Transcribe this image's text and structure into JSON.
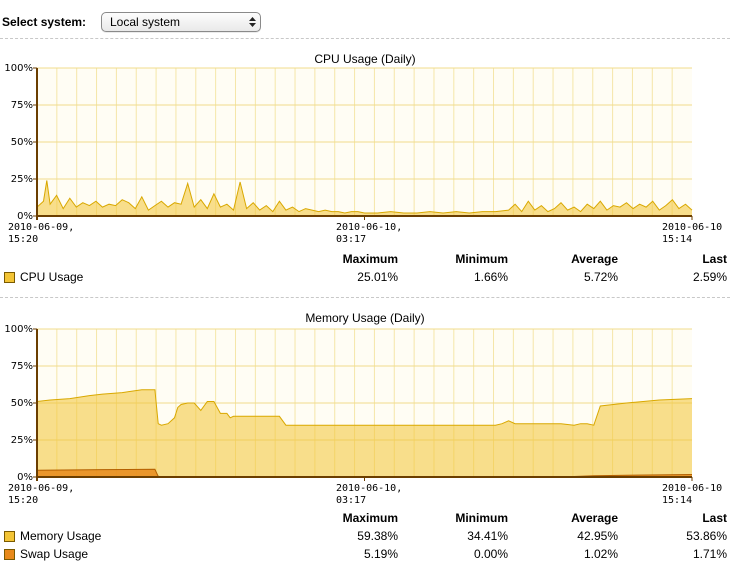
{
  "system": {
    "label": "Select system:",
    "selected": "Local system"
  },
  "cpu": {
    "title": "CPU Usage (Daily)",
    "y_ticks": [
      "100%",
      "75%",
      "50%",
      "25%",
      "0%"
    ],
    "x_labels": [
      "2010-06-09,\n15:20",
      "2010-06-10,\n03:17",
      "2010-06-10\n15:14"
    ],
    "stat_headers": [
      "Maximum",
      "Minimum",
      "Average",
      "Last"
    ],
    "legend": [
      {
        "name": "CPU Usage",
        "color": "#f3c435",
        "values": [
          "25.01%",
          "1.66%",
          "5.72%",
          "2.59%"
        ]
      }
    ]
  },
  "memory": {
    "title": "Memory Usage (Daily)",
    "y_ticks": [
      "100%",
      "75%",
      "50%",
      "25%",
      "0%"
    ],
    "x_labels": [
      "2010-06-09,\n15:20",
      "2010-06-10,\n03:17",
      "2010-06-10\n15:14"
    ],
    "stat_headers": [
      "Maximum",
      "Minimum",
      "Average",
      "Last"
    ],
    "legend": [
      {
        "name": "Memory Usage",
        "color": "#f3c435",
        "values": [
          "59.38%",
          "34.41%",
          "42.95%",
          "53.86%"
        ]
      },
      {
        "name": "Swap Usage",
        "color": "#e8891a",
        "values": [
          "5.19%",
          "0.00%",
          "1.02%",
          "1.71%"
        ]
      }
    ]
  },
  "chart_data": [
    {
      "type": "area",
      "title": "CPU Usage (Daily)",
      "ylim": [
        0,
        100
      ],
      "y_unit": "%",
      "x_range": [
        "2010-06-09 15:20",
        "2010-06-10 15:14"
      ],
      "series": [
        {
          "name": "CPU Usage",
          "x_fraction": [
            0,
            0.01,
            0.015,
            0.02,
            0.03,
            0.04,
            0.05,
            0.06,
            0.07,
            0.08,
            0.09,
            0.1,
            0.11,
            0.12,
            0.13,
            0.14,
            0.15,
            0.16,
            0.17,
            0.18,
            0.19,
            0.2,
            0.21,
            0.22,
            0.23,
            0.24,
            0.25,
            0.26,
            0.27,
            0.28,
            0.29,
            0.3,
            0.31,
            0.32,
            0.33,
            0.34,
            0.35,
            0.36,
            0.37,
            0.38,
            0.39,
            0.4,
            0.41,
            0.42,
            0.43,
            0.44,
            0.45,
            0.46,
            0.47,
            0.48,
            0.49,
            0.5,
            0.52,
            0.54,
            0.56,
            0.58,
            0.6,
            0.62,
            0.64,
            0.66,
            0.68,
            0.7,
            0.72,
            0.73,
            0.74,
            0.75,
            0.76,
            0.77,
            0.78,
            0.79,
            0.8,
            0.81,
            0.82,
            0.83,
            0.84,
            0.85,
            0.86,
            0.87,
            0.88,
            0.89,
            0.9,
            0.91,
            0.92,
            0.93,
            0.94,
            0.95,
            0.96,
            0.97,
            0.98,
            0.99,
            1
          ],
          "values": [
            6,
            10,
            24,
            8,
            14,
            5,
            12,
            6,
            9,
            7,
            10,
            6,
            8,
            7,
            11,
            9,
            5,
            13,
            4,
            7,
            10,
            6,
            9,
            8,
            22,
            6,
            11,
            5,
            15,
            6,
            8,
            4,
            23,
            5,
            9,
            4,
            7,
            3,
            10,
            4,
            6,
            3,
            5,
            4,
            3,
            4,
            3,
            3,
            2,
            3,
            3,
            2,
            2,
            3,
            2,
            2,
            3,
            2,
            3,
            2,
            3,
            3,
            4,
            8,
            3,
            10,
            4,
            7,
            3,
            5,
            9,
            4,
            6,
            3,
            8,
            5,
            10,
            4,
            7,
            6,
            9,
            5,
            8,
            6,
            10,
            4,
            7,
            11,
            5,
            8,
            4
          ]
        }
      ]
    },
    {
      "type": "area",
      "title": "Memory Usage (Daily)",
      "ylim": [
        0,
        100
      ],
      "y_unit": "%",
      "x_range": [
        "2010-06-09 15:20",
        "2010-06-10 15:14"
      ],
      "series": [
        {
          "name": "Memory Usage",
          "x_fraction": [
            0,
            0.02,
            0.05,
            0.08,
            0.1,
            0.13,
            0.16,
            0.18,
            0.185,
            0.19,
            0.2,
            0.21,
            0.215,
            0.22,
            0.23,
            0.24,
            0.25,
            0.26,
            0.27,
            0.28,
            0.29,
            0.295,
            0.3,
            0.32,
            0.35,
            0.37,
            0.38,
            0.4,
            0.42,
            0.45,
            0.5,
            0.55,
            0.6,
            0.65,
            0.7,
            0.71,
            0.72,
            0.73,
            0.75,
            0.8,
            0.82,
            0.83,
            0.84,
            0.85,
            0.86,
            0.9,
            0.95,
            1
          ],
          "values": [
            51,
            52,
            53,
            55,
            56,
            57,
            59,
            59,
            36,
            35,
            36,
            40,
            47,
            49,
            50,
            50,
            45,
            51,
            51,
            43,
            43,
            40,
            41,
            41,
            41,
            41,
            35,
            35,
            35,
            35,
            35,
            35,
            35,
            35,
            35,
            36,
            38,
            36,
            36,
            36,
            35,
            36,
            36,
            35,
            48,
            50,
            52,
            53
          ]
        },
        {
          "name": "Swap Usage",
          "x_fraction": [
            0,
            0.1,
            0.18,
            0.185,
            0.19,
            0.3,
            0.5,
            0.8,
            0.85,
            0.9,
            1
          ],
          "values": [
            4.5,
            5,
            5.19,
            0.5,
            0,
            0,
            0,
            0,
            0.8,
            1.2,
            1.71
          ]
        }
      ]
    }
  ]
}
